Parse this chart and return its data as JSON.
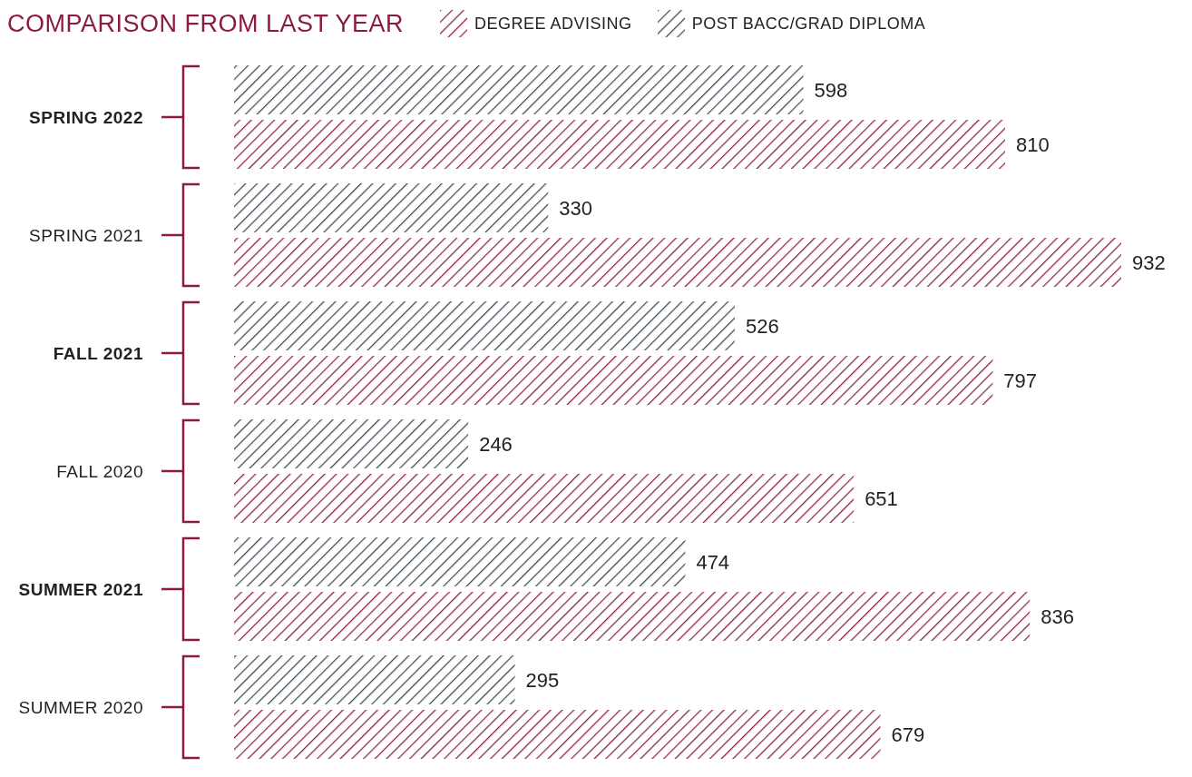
{
  "chart_data": {
    "type": "bar",
    "orientation": "horizontal",
    "title": "COMPARISON FROM LAST YEAR",
    "categories": [
      "SPRING 2022",
      "SPRING 2021",
      "FALL 2021",
      "FALL 2020",
      "SUMMER 2021",
      "SUMMER 2020"
    ],
    "series": [
      {
        "name": "DEGREE ADVISING",
        "color": "#8c1c3e",
        "values": [
          810,
          932,
          797,
          651,
          836,
          679
        ]
      },
      {
        "name": "POST BACC/GRAD DIPLOMA",
        "color": "#3b4650",
        "values": [
          598,
          330,
          526,
          246,
          474,
          295
        ]
      }
    ],
    "data_labels": true,
    "legend": "top",
    "tick_labels": "y",
    "grid": false
  }
}
